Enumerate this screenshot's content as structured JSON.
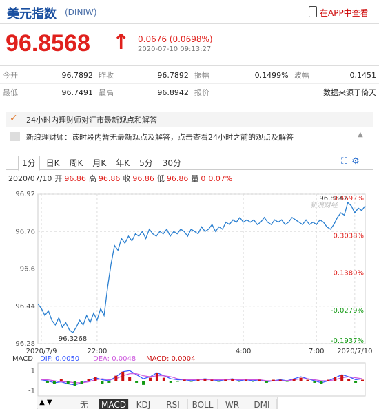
{
  "header": {
    "title": "美元指数",
    "code": "(DINIW)",
    "app_link": "在APP中查看"
  },
  "quote": {
    "price": "96.8568",
    "change": "0.0676 (0.0698%)",
    "time": "2020-07-10 09:13:27"
  },
  "quote_table": [
    [
      "今开",
      "96.7892",
      "昨收",
      "96.7892",
      "振幅",
      "0.1499%",
      "波幅",
      "0.1451"
    ],
    [
      "最低",
      "96.7491",
      "最高",
      "96.8942",
      "报价",
      "数据来源于倚天"
    ]
  ],
  "news": {
    "header": "24小时内理财师对汇市最新观点和解答",
    "item": "新浪理财师：该时段内暂无最新观点及解答，点击查看24小时之前的观点及解答"
  },
  "period_tabs": [
    "1分",
    "日K",
    "周K",
    "月K",
    "年K",
    "5分",
    "30分"
  ],
  "info_line": {
    "date": "2020/07/10",
    "items": [
      [
        "开",
        "96.86"
      ],
      [
        "高",
        "96.86"
      ],
      [
        "收",
        "96.86"
      ],
      [
        "低",
        "96.86"
      ],
      [
        "量",
        "0"
      ]
    ],
    "pct": "0.07%"
  },
  "indicator_tabs": [
    "无",
    "MACD",
    "KDJ",
    "RSI",
    "BOLL",
    "WR",
    "DMI"
  ],
  "chart_data": [
    {
      "type": "line",
      "color": "#2a7fd0",
      "watermark": "新浪财经",
      "values": [
        96.45,
        96.43,
        96.4,
        96.42,
        96.38,
        96.36,
        96.39,
        96.35,
        96.37,
        96.34,
        96.3268,
        96.35,
        96.38,
        96.36,
        96.4,
        96.37,
        96.41,
        96.38,
        96.43,
        96.4,
        96.52,
        96.62,
        96.7,
        96.68,
        96.73,
        96.71,
        96.74,
        96.72,
        96.75,
        96.74,
        96.76,
        96.73,
        96.77,
        96.75,
        96.74,
        96.76,
        96.75,
        96.77,
        96.74,
        96.76,
        96.75,
        96.77,
        96.76,
        96.74,
        96.77,
        96.76,
        96.75,
        96.78,
        96.76,
        96.77,
        96.79,
        96.76,
        96.78,
        96.77,
        96.8,
        96.79,
        96.81,
        96.8,
        96.82,
        96.8,
        96.81,
        96.8,
        96.81,
        96.79,
        96.8,
        96.82,
        96.8,
        96.79,
        96.81,
        96.8,
        96.81,
        96.79,
        96.8,
        96.82,
        96.81,
        96.8,
        96.79,
        96.81,
        96.79,
        96.8,
        96.79,
        96.81,
        96.8,
        96.78,
        96.77,
        96.79,
        96.82,
        96.84,
        96.83,
        96.8842,
        96.87,
        96.84,
        96.86,
        96.85,
        96.87
      ],
      "annotations": [
        {
          "index": 10,
          "value": 96.3268,
          "label": "96.3268"
        },
        {
          "index": 89,
          "value": 96.8842,
          "label": "96.8842"
        }
      ],
      "xlim": [
        0,
        94
      ],
      "xticks": [
        {
          "value": 1,
          "label": "2020/7/9"
        },
        {
          "value": 17,
          "label": "22:00"
        },
        {
          "value": 59,
          "label": "4:00"
        },
        {
          "value": 80,
          "label": "7:00"
        },
        {
          "value": 91,
          "label": "2020/7/10"
        }
      ],
      "ylim": [
        96.28,
        96.92
      ],
      "yticks": [
        96.92,
        96.76,
        96.6,
        96.44,
        96.28
      ],
      "y2lim": [
        -0.1937,
        0.4697
      ],
      "y2ticks": [
        {
          "value": 0.4697,
          "label": "0.4697%"
        },
        {
          "value": 0.3038,
          "label": "0.3038%"
        },
        {
          "value": 0.138,
          "label": "0.1380%"
        },
        {
          "value": -0.0279,
          "label": "-0.0279%"
        },
        {
          "value": -0.1937,
          "label": "-0.1937%"
        }
      ],
      "grid": true
    },
    {
      "type": "bar",
      "title": "MACD",
      "ylim": [
        -1.5,
        1.5
      ],
      "yticks": [
        1,
        -1
      ],
      "xlim": [
        0,
        47
      ],
      "series": [
        {
          "name": "DIF: 0.0050",
          "color": "#3355ff",
          "type": "line",
          "values": [
            0.1,
            0,
            -0.2,
            -0.1,
            -0.3,
            -0.4,
            -0.2,
            0,
            0.3,
            0.1,
            0,
            0.4,
            0.9,
            1.0,
            0.6,
            0.2,
            0.4,
            0.8,
            0.5,
            0.2,
            0.1,
            0.1,
            0,
            0.1,
            0.2,
            0.1,
            0,
            0.1,
            0.2,
            0,
            0.1,
            0,
            0.1,
            -0.1,
            0,
            0.1,
            0,
            0.2,
            0.4,
            0.2,
            0,
            -0.2,
            0,
            0.3,
            0.6,
            0.4,
            0.1,
            0.2
          ]
        },
        {
          "name": "DEA: 0.0048",
          "color": "#cc55dd",
          "type": "line",
          "values": [
            0.1,
            0.1,
            0,
            -0.1,
            -0.1,
            -0.2,
            -0.2,
            -0.1,
            0.1,
            0.2,
            0.1,
            0.2,
            0.5,
            0.7,
            0.7,
            0.5,
            0.4,
            0.5,
            0.5,
            0.4,
            0.2,
            0.1,
            0.1,
            0.1,
            0.1,
            0.1,
            0.1,
            0.1,
            0.1,
            0.1,
            0.1,
            0.1,
            0.1,
            0,
            0,
            0,
            0,
            0.1,
            0.2,
            0.2,
            0.1,
            0,
            0,
            0.1,
            0.3,
            0.4,
            0.3,
            0.2
          ]
        },
        {
          "name": "MACD: 0.0004",
          "color": "#cc1111",
          "negative_color": "#119911",
          "type": "bar",
          "values": [
            0,
            -0.2,
            -0.3,
            0.2,
            -0.3,
            -0.5,
            -0.3,
            0.2,
            0.4,
            -0.3,
            -0.2,
            0.5,
            0.9,
            0.4,
            -0.2,
            -0.4,
            0.3,
            0.8,
            0.3,
            -0.2,
            -0.1,
            0.1,
            -0.1,
            0.1,
            0.2,
            0.1,
            -0.1,
            0.1,
            0.2,
            -0.1,
            0.1,
            -0.1,
            0.1,
            -0.2,
            0.1,
            0.1,
            -0.1,
            0.2,
            0.3,
            0.1,
            -0.2,
            -0.3,
            0.1,
            0.4,
            0.6,
            0.2,
            -0.2,
            0.1
          ]
        }
      ]
    }
  ]
}
